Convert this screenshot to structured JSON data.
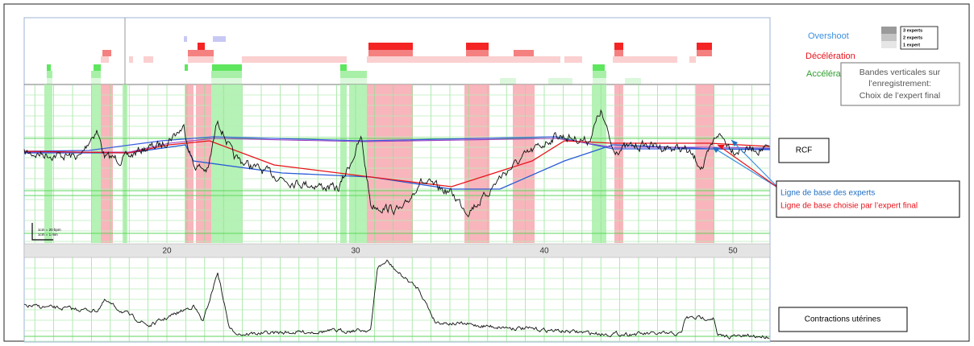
{
  "annotation_labels": {
    "overshoot": "Overshoot",
    "deceleration": "Décélération",
    "acceleration": "Accélération"
  },
  "expert_legend": [
    "3 experts",
    "2 experts",
    "1 expert"
  ],
  "final_expert_box": [
    "Bandes verticales sur",
    "l’enregistrement:",
    "Choix de l’expert final"
  ],
  "rcf_label": "RCF",
  "baseline_legend": {
    "experts": "Ligne de base des experts",
    "final_expert": "Ligne de base choisie par l’expert final"
  },
  "contractions_label": "Contractions utérines",
  "scale": [
    "1cm = 20 bpm",
    "1cm = 1 min"
  ],
  "time_axis": [
    "20",
    "30",
    "40",
    "50"
  ]
}
